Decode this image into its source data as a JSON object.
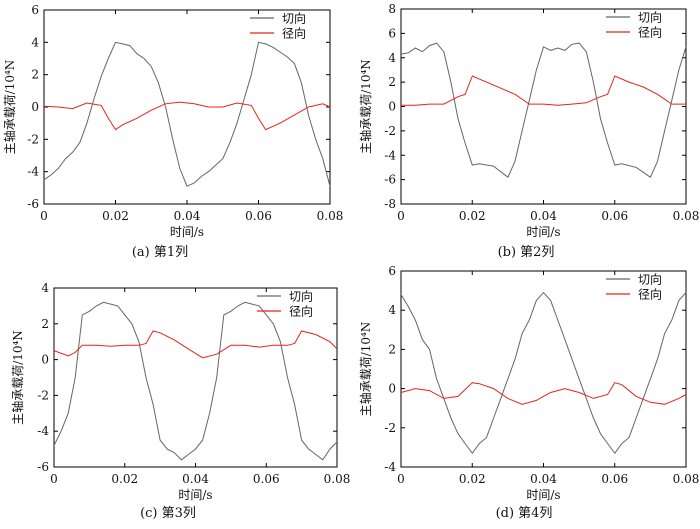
{
  "figure": {
    "colors": {
      "tangential": "#666666",
      "radial": "#e8231a",
      "axis": "#000000"
    }
  },
  "chart_data": [
    {
      "type": "line",
      "caption": "(a)  第1列",
      "xlabel": "时间/s",
      "ylabel": "主轴承载荷/10⁴N",
      "xlim": [
        0,
        0.08
      ],
      "ylim": [
        -6,
        6
      ],
      "xticks": [
        "0",
        "0.02",
        "0.04",
        "0.06",
        "0.08"
      ],
      "yticks": [
        "-6",
        "-4",
        "-2",
        "0",
        "2",
        "4",
        "6"
      ],
      "legend": "top-right",
      "series": [
        {
          "name": "切向",
          "color": "#666666",
          "x": [
            0,
            0.002,
            0.004,
            0.006,
            0.008,
            0.01,
            0.012,
            0.014,
            0.016,
            0.018,
            0.02,
            0.022,
            0.024,
            0.026,
            0.028,
            0.03,
            0.032,
            0.034,
            0.036,
            0.038,
            0.04,
            0.042,
            0.044,
            0.046,
            0.048,
            0.05,
            0.052,
            0.054,
            0.056,
            0.058,
            0.06,
            0.062,
            0.064,
            0.066,
            0.068,
            0.07,
            0.072,
            0.074,
            0.076,
            0.078,
            0.08
          ],
          "y": [
            -4.5,
            -4.2,
            -3.8,
            -3.2,
            -2.8,
            -2.2,
            -1.0,
            0.5,
            1.9,
            3.0,
            4.0,
            3.9,
            3.8,
            3.3,
            3.0,
            2.5,
            1.5,
            0.0,
            -2.0,
            -3.8,
            -4.9,
            -4.7,
            -4.3,
            -4.0,
            -3.6,
            -3.2,
            -2.2,
            -1.0,
            0.5,
            2.0,
            4.0,
            3.9,
            3.7,
            3.4,
            3.1,
            2.7,
            1.5,
            -0.5,
            -2.0,
            -3.2,
            -4.9
          ]
        },
        {
          "name": "径向",
          "color": "#e8231a",
          "x": [
            0,
            0.004,
            0.008,
            0.012,
            0.016,
            0.018,
            0.02,
            0.022,
            0.026,
            0.03,
            0.034,
            0.038,
            0.042,
            0.046,
            0.05,
            0.054,
            0.058,
            0.06,
            0.062,
            0.066,
            0.07,
            0.074,
            0.078,
            0.08
          ],
          "y": [
            0.05,
            0.0,
            -0.1,
            0.25,
            0.1,
            -0.7,
            -1.4,
            -1.1,
            -0.7,
            -0.2,
            0.2,
            0.3,
            0.2,
            0.0,
            0.0,
            0.25,
            0.1,
            -0.7,
            -1.4,
            -1.0,
            -0.5,
            0.0,
            0.2,
            0.0
          ]
        }
      ]
    },
    {
      "type": "line",
      "caption": "(b)  第2列",
      "xlabel": "时间/s",
      "ylabel": "主轴承载荷/10⁴N",
      "xlim": [
        0,
        0.08
      ],
      "ylim": [
        -8,
        8
      ],
      "xticks": [
        "0",
        "0.02",
        "0.04",
        "0.06",
        "0.08"
      ],
      "yticks": [
        "-8",
        "-6",
        "-4",
        "-2",
        "0",
        "2",
        "4",
        "6",
        "8"
      ],
      "legend": "top-right",
      "series": [
        {
          "name": "切向",
          "color": "#666666",
          "x": [
            0,
            0.002,
            0.004,
            0.006,
            0.008,
            0.01,
            0.012,
            0.014,
            0.016,
            0.018,
            0.02,
            0.022,
            0.026,
            0.03,
            0.032,
            0.034,
            0.036,
            0.038,
            0.04,
            0.042,
            0.044,
            0.046,
            0.048,
            0.05,
            0.052,
            0.054,
            0.056,
            0.058,
            0.06,
            0.062,
            0.066,
            0.07,
            0.072,
            0.074,
            0.076,
            0.078,
            0.08
          ],
          "y": [
            4.3,
            4.4,
            4.8,
            4.5,
            5.0,
            5.2,
            4.5,
            2.0,
            -1.0,
            -3.0,
            -4.8,
            -4.7,
            -4.9,
            -5.8,
            -4.5,
            -2.0,
            0.5,
            3.0,
            4.9,
            4.6,
            4.8,
            4.6,
            5.1,
            5.2,
            4.5,
            2.0,
            -1.0,
            -3.0,
            -4.8,
            -4.7,
            -5.0,
            -5.8,
            -4.5,
            -2.0,
            0.5,
            3.0,
            4.9
          ]
        },
        {
          "name": "径向",
          "color": "#e8231a",
          "x": [
            0,
            0.004,
            0.008,
            0.012,
            0.016,
            0.018,
            0.02,
            0.024,
            0.028,
            0.032,
            0.036,
            0.04,
            0.044,
            0.048,
            0.052,
            0.056,
            0.058,
            0.06,
            0.064,
            0.068,
            0.072,
            0.076,
            0.08
          ],
          "y": [
            0.1,
            0.1,
            0.2,
            0.2,
            0.8,
            1.0,
            2.5,
            2.0,
            1.5,
            1.0,
            0.2,
            0.2,
            0.1,
            0.2,
            0.3,
            0.8,
            1.0,
            2.5,
            2.0,
            1.6,
            1.0,
            0.2,
            0.2
          ]
        }
      ]
    },
    {
      "type": "line",
      "caption": "(c)  第3列",
      "xlabel": "时间/s",
      "ylabel": "主轴承载荷/10⁴N",
      "xlim": [
        0,
        0.08
      ],
      "ylim": [
        -6,
        4
      ],
      "xticks": [
        "0",
        "0.02",
        "0.04",
        "0.06",
        "0.08"
      ],
      "yticks": [
        "-6",
        "-4",
        "-2",
        "0",
        "2",
        "4"
      ],
      "legend": "top-right",
      "series": [
        {
          "name": "切向",
          "color": "#666666",
          "x": [
            0,
            0.002,
            0.004,
            0.006,
            0.008,
            0.01,
            0.012,
            0.014,
            0.016,
            0.018,
            0.02,
            0.022,
            0.024,
            0.026,
            0.028,
            0.03,
            0.032,
            0.034,
            0.036,
            0.038,
            0.04,
            0.042,
            0.044,
            0.046,
            0.048,
            0.05,
            0.052,
            0.054,
            0.056,
            0.058,
            0.06,
            0.062,
            0.064,
            0.066,
            0.068,
            0.07,
            0.072,
            0.074,
            0.076,
            0.078,
            0.08
          ],
          "y": [
            -4.8,
            -4.0,
            -3.0,
            -1.0,
            2.5,
            2.7,
            3.0,
            3.2,
            3.1,
            3.0,
            2.5,
            2.0,
            1.0,
            -1.0,
            -2.5,
            -4.5,
            -5.0,
            -5.2,
            -5.6,
            -5.3,
            -5.0,
            -4.5,
            -3.0,
            -1.0,
            2.5,
            2.7,
            3.0,
            3.2,
            3.1,
            3.0,
            2.5,
            2.0,
            1.0,
            -1.0,
            -2.5,
            -4.5,
            -5.0,
            -5.3,
            -5.6,
            -5.0,
            -4.6
          ]
        },
        {
          "name": "径向",
          "color": "#e8231a",
          "x": [
            0,
            0.004,
            0.006,
            0.008,
            0.012,
            0.016,
            0.02,
            0.024,
            0.026,
            0.028,
            0.03,
            0.034,
            0.038,
            0.042,
            0.046,
            0.05,
            0.054,
            0.058,
            0.062,
            0.066,
            0.068,
            0.07,
            0.074,
            0.078,
            0.08
          ],
          "y": [
            0.5,
            0.2,
            0.4,
            0.8,
            0.8,
            0.75,
            0.8,
            0.8,
            0.9,
            1.6,
            1.5,
            1.1,
            0.6,
            0.1,
            0.3,
            0.8,
            0.8,
            0.7,
            0.8,
            0.8,
            0.9,
            1.6,
            1.4,
            1.0,
            0.6
          ]
        }
      ]
    },
    {
      "type": "line",
      "caption": "(d)  第4列",
      "xlabel": "时间/s",
      "ylabel": "主轴承载荷/10⁴N",
      "xlim": [
        0,
        0.08
      ],
      "ylim": [
        -4,
        6
      ],
      "xticks": [
        "0",
        "0.02",
        "0.04",
        "0.06",
        "0.08"
      ],
      "yticks": [
        "-4",
        "-2",
        "0",
        "2",
        "4",
        "6"
      ],
      "legend": "top-right",
      "series": [
        {
          "name": "切向",
          "color": "#666666",
          "x": [
            0,
            0.002,
            0.004,
            0.006,
            0.008,
            0.01,
            0.012,
            0.014,
            0.016,
            0.018,
            0.02,
            0.022,
            0.024,
            0.026,
            0.028,
            0.03,
            0.032,
            0.034,
            0.036,
            0.038,
            0.04,
            0.042,
            0.044,
            0.046,
            0.048,
            0.05,
            0.052,
            0.054,
            0.056,
            0.058,
            0.06,
            0.062,
            0.064,
            0.066,
            0.068,
            0.07,
            0.072,
            0.074,
            0.076,
            0.078,
            0.08
          ],
          "y": [
            4.8,
            4.2,
            3.5,
            2.5,
            2.0,
            0.5,
            -0.5,
            -1.5,
            -2.3,
            -2.8,
            -3.3,
            -2.8,
            -2.5,
            -1.5,
            -0.5,
            0.5,
            1.5,
            2.8,
            3.5,
            4.5,
            4.9,
            4.5,
            3.5,
            2.5,
            1.5,
            0.5,
            -0.5,
            -1.5,
            -2.3,
            -2.8,
            -3.3,
            -2.8,
            -2.5,
            -1.5,
            -0.5,
            0.5,
            1.5,
            2.8,
            3.5,
            4.5,
            4.9
          ]
        },
        {
          "name": "径向",
          "color": "#e8231a",
          "x": [
            0,
            0.004,
            0.008,
            0.012,
            0.016,
            0.02,
            0.022,
            0.026,
            0.03,
            0.034,
            0.038,
            0.042,
            0.046,
            0.05,
            0.054,
            0.058,
            0.06,
            0.062,
            0.066,
            0.07,
            0.074,
            0.078,
            0.08
          ],
          "y": [
            -0.2,
            0.0,
            -0.1,
            -0.5,
            -0.4,
            0.3,
            0.25,
            0.0,
            -0.5,
            -0.8,
            -0.6,
            -0.2,
            0.0,
            -0.2,
            -0.5,
            -0.3,
            0.3,
            0.2,
            -0.4,
            -0.7,
            -0.8,
            -0.5,
            -0.3
          ]
        }
      ]
    }
  ]
}
